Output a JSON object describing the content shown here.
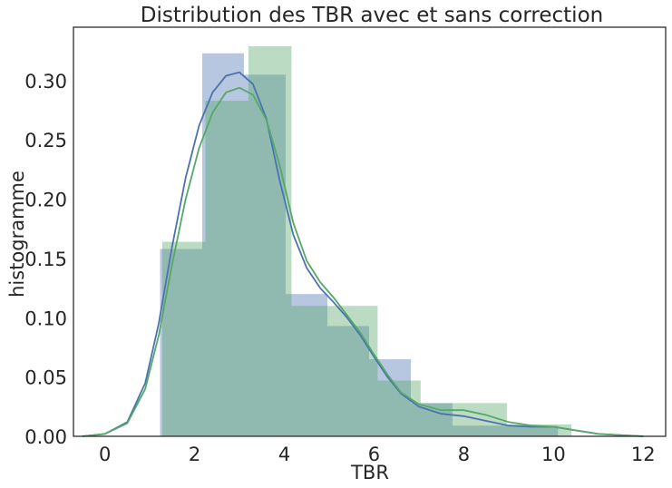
{
  "chart_data": {
    "type": "histogram",
    "title": "Distribution des TBR avec et sans correction",
    "xlabel": "TBR",
    "ylabel": "histogramme",
    "xlim": [
      -0.7,
      12.5
    ],
    "ylim": [
      0,
      0.345
    ],
    "xticks": [
      "0",
      "2",
      "4",
      "6",
      "8",
      "10",
      "12"
    ],
    "xtick_values": [
      0,
      2,
      4,
      6,
      8,
      10,
      12
    ],
    "yticks": [
      "0.00",
      "0.05",
      "0.10",
      "0.15",
      "0.20",
      "0.25",
      "0.30"
    ],
    "ytick_values": [
      0,
      0.05,
      0.1,
      0.15,
      0.2,
      0.25,
      0.3
    ],
    "grid": false,
    "series": [
      {
        "color": "#4c72b0",
        "bins": [
          {
            "x0": 1.23,
            "x1": 2.17,
            "y": 0.158
          },
          {
            "x0": 2.17,
            "x1": 3.1,
            "y": 0.323
          },
          {
            "x0": 3.1,
            "x1": 4.03,
            "y": 0.305
          },
          {
            "x0": 4.03,
            "x1": 4.96,
            "y": 0.12
          },
          {
            "x0": 4.96,
            "x1": 5.89,
            "y": 0.093
          },
          {
            "x0": 5.89,
            "x1": 6.82,
            "y": 0.065
          },
          {
            "x0": 6.82,
            "x1": 7.75,
            "y": 0.028
          },
          {
            "x0": 7.75,
            "x1": 8.68,
            "y": 0.009
          },
          {
            "x0": 8.68,
            "x1": 9.61,
            "y": 0.009
          },
          {
            "x0": 9.61,
            "x1": 10.1,
            "y": 0.009
          }
        ],
        "kde": [
          [
            -0.5,
            0
          ],
          [
            0,
            0.002
          ],
          [
            0.5,
            0.012
          ],
          [
            0.9,
            0.045
          ],
          [
            1.2,
            0.095
          ],
          [
            1.5,
            0.16
          ],
          [
            1.8,
            0.218
          ],
          [
            2.1,
            0.262
          ],
          [
            2.4,
            0.29
          ],
          [
            2.7,
            0.304
          ],
          [
            3.0,
            0.307
          ],
          [
            3.3,
            0.297
          ],
          [
            3.6,
            0.268
          ],
          [
            3.9,
            0.215
          ],
          [
            4.2,
            0.17
          ],
          [
            4.5,
            0.142
          ],
          [
            4.8,
            0.125
          ],
          [
            5.1,
            0.113
          ],
          [
            5.4,
            0.1
          ],
          [
            5.7,
            0.085
          ],
          [
            6.0,
            0.067
          ],
          [
            6.3,
            0.05
          ],
          [
            6.6,
            0.036
          ],
          [
            7.0,
            0.025
          ],
          [
            7.5,
            0.019
          ],
          [
            8.0,
            0.017
          ],
          [
            8.5,
            0.013
          ],
          [
            9.0,
            0.009
          ],
          [
            9.5,
            0.008
          ],
          [
            10.0,
            0.008
          ],
          [
            10.5,
            0.005
          ],
          [
            11.0,
            0.002
          ],
          [
            12.0,
            0
          ]
        ]
      },
      {
        "color": "#55a868",
        "bins": [
          {
            "x0": 1.28,
            "x1": 2.24,
            "y": 0.164
          },
          {
            "x0": 2.24,
            "x1": 3.2,
            "y": 0.283
          },
          {
            "x0": 3.2,
            "x1": 4.16,
            "y": 0.329
          },
          {
            "x0": 4.16,
            "x1": 5.12,
            "y": 0.11
          },
          {
            "x0": 5.12,
            "x1": 6.08,
            "y": 0.11
          },
          {
            "x0": 6.08,
            "x1": 7.04,
            "y": 0.047
          },
          {
            "x0": 7.04,
            "x1": 8.0,
            "y": 0.028
          },
          {
            "x0": 8.0,
            "x1": 8.96,
            "y": 0.028
          },
          {
            "x0": 8.96,
            "x1": 9.92,
            "y": 0.01
          },
          {
            "x0": 9.92,
            "x1": 10.4,
            "y": 0.01
          }
        ],
        "kde": [
          [
            -0.5,
            0
          ],
          [
            0,
            0.002
          ],
          [
            0.5,
            0.011
          ],
          [
            0.9,
            0.04
          ],
          [
            1.2,
            0.085
          ],
          [
            1.5,
            0.145
          ],
          [
            1.8,
            0.2
          ],
          [
            2.1,
            0.243
          ],
          [
            2.4,
            0.273
          ],
          [
            2.7,
            0.29
          ],
          [
            3.0,
            0.294
          ],
          [
            3.3,
            0.288
          ],
          [
            3.6,
            0.267
          ],
          [
            3.9,
            0.228
          ],
          [
            4.2,
            0.18
          ],
          [
            4.5,
            0.148
          ],
          [
            4.8,
            0.13
          ],
          [
            5.1,
            0.117
          ],
          [
            5.4,
            0.102
          ],
          [
            5.7,
            0.087
          ],
          [
            6.0,
            0.069
          ],
          [
            6.3,
            0.052
          ],
          [
            6.6,
            0.037
          ],
          [
            7.0,
            0.027
          ],
          [
            7.5,
            0.022
          ],
          [
            8.0,
            0.022
          ],
          [
            8.5,
            0.018
          ],
          [
            9.0,
            0.012
          ],
          [
            9.5,
            0.009
          ],
          [
            10.0,
            0.008
          ],
          [
            10.5,
            0.005
          ],
          [
            11.0,
            0.002
          ],
          [
            12.0,
            0
          ]
        ]
      }
    ]
  }
}
